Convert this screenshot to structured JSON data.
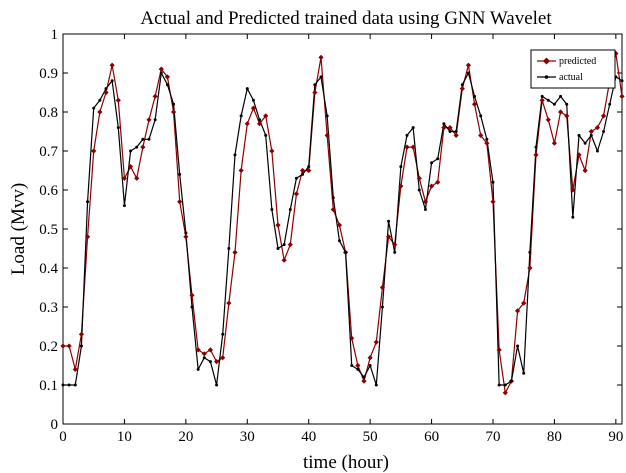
{
  "chart_data": {
    "type": "line",
    "title": "Actual and Predicted trained data using GNN Wavelet",
    "xlabel": "time (hour)",
    "ylabel": "Load (Mvv)",
    "xlim": [
      0,
      91
    ],
    "ylim": [
      0,
      1
    ],
    "xticks": [
      0,
      10,
      20,
      30,
      40,
      50,
      60,
      70,
      80,
      90
    ],
    "yticks": [
      0,
      0.1,
      0.2,
      0.3,
      0.4,
      0.5,
      0.6,
      0.7,
      0.8,
      0.9,
      1
    ],
    "grid": false,
    "legend_position": "top-right",
    "x": [
      0,
      1,
      2,
      3,
      4,
      5,
      6,
      7,
      8,
      9,
      10,
      11,
      12,
      13,
      14,
      15,
      16,
      17,
      18,
      19,
      20,
      21,
      22,
      23,
      24,
      25,
      26,
      27,
      28,
      29,
      30,
      31,
      32,
      33,
      34,
      35,
      36,
      37,
      38,
      39,
      40,
      41,
      42,
      43,
      44,
      45,
      46,
      47,
      48,
      49,
      50,
      51,
      52,
      53,
      54,
      55,
      56,
      57,
      58,
      59,
      60,
      61,
      62,
      63,
      64,
      65,
      66,
      67,
      68,
      69,
      70,
      71,
      72,
      73,
      74,
      75,
      76,
      77,
      78,
      79,
      80,
      81,
      82,
      83,
      84,
      85,
      86,
      87,
      88,
      89,
      90,
      91
    ],
    "series": [
      {
        "name": "predicted",
        "color": "#8b0000",
        "marker": "diamond",
        "values": [
          0.2,
          0.2,
          0.14,
          0.23,
          0.48,
          0.7,
          0.8,
          0.85,
          0.92,
          0.83,
          0.63,
          0.66,
          0.63,
          0.71,
          0.78,
          0.84,
          0.91,
          0.89,
          0.8,
          0.57,
          0.48,
          0.33,
          0.19,
          0.18,
          0.19,
          0.16,
          0.17,
          0.31,
          0.44,
          0.65,
          0.77,
          0.81,
          0.77,
          0.79,
          0.7,
          0.51,
          0.42,
          0.46,
          0.59,
          0.65,
          0.65,
          0.85,
          0.94,
          0.74,
          0.55,
          0.51,
          0.44,
          0.22,
          0.15,
          0.11,
          0.17,
          0.21,
          0.35,
          0.48,
          0.46,
          0.61,
          0.71,
          0.71,
          0.63,
          0.57,
          0.61,
          0.62,
          0.76,
          0.76,
          0.74,
          0.86,
          0.92,
          0.82,
          0.74,
          0.72,
          0.57,
          0.19,
          0.08,
          0.11,
          0.29,
          0.31,
          0.4,
          0.69,
          0.83,
          0.78,
          0.72,
          0.8,
          0.79,
          0.6,
          0.69,
          0.65,
          0.75,
          0.76,
          0.79,
          0.88,
          0.95,
          0.84
        ]
      },
      {
        "name": "actual",
        "color": "#000000",
        "marker": "dot",
        "values": [
          0.1,
          0.1,
          0.1,
          0.2,
          0.57,
          0.81,
          0.83,
          0.86,
          0.88,
          0.76,
          0.56,
          0.7,
          0.71,
          0.73,
          0.73,
          0.78,
          0.9,
          0.87,
          0.82,
          0.64,
          0.49,
          0.3,
          0.14,
          0.17,
          0.16,
          0.1,
          0.23,
          0.45,
          0.69,
          0.79,
          0.86,
          0.83,
          0.78,
          0.74,
          0.55,
          0.45,
          0.46,
          0.55,
          0.63,
          0.64,
          0.66,
          0.87,
          0.89,
          0.79,
          0.58,
          0.47,
          0.44,
          0.15,
          0.14,
          0.12,
          0.15,
          0.1,
          0.3,
          0.52,
          0.44,
          0.66,
          0.74,
          0.76,
          0.6,
          0.55,
          0.67,
          0.68,
          0.77,
          0.75,
          0.75,
          0.87,
          0.9,
          0.84,
          0.79,
          0.73,
          0.62,
          0.1,
          0.1,
          0.11,
          0.2,
          0.13,
          0.44,
          0.71,
          0.84,
          0.83,
          0.82,
          0.84,
          0.82,
          0.53,
          0.74,
          0.72,
          0.74,
          0.7,
          0.75,
          0.82,
          0.89,
          0.88
        ]
      }
    ]
  }
}
